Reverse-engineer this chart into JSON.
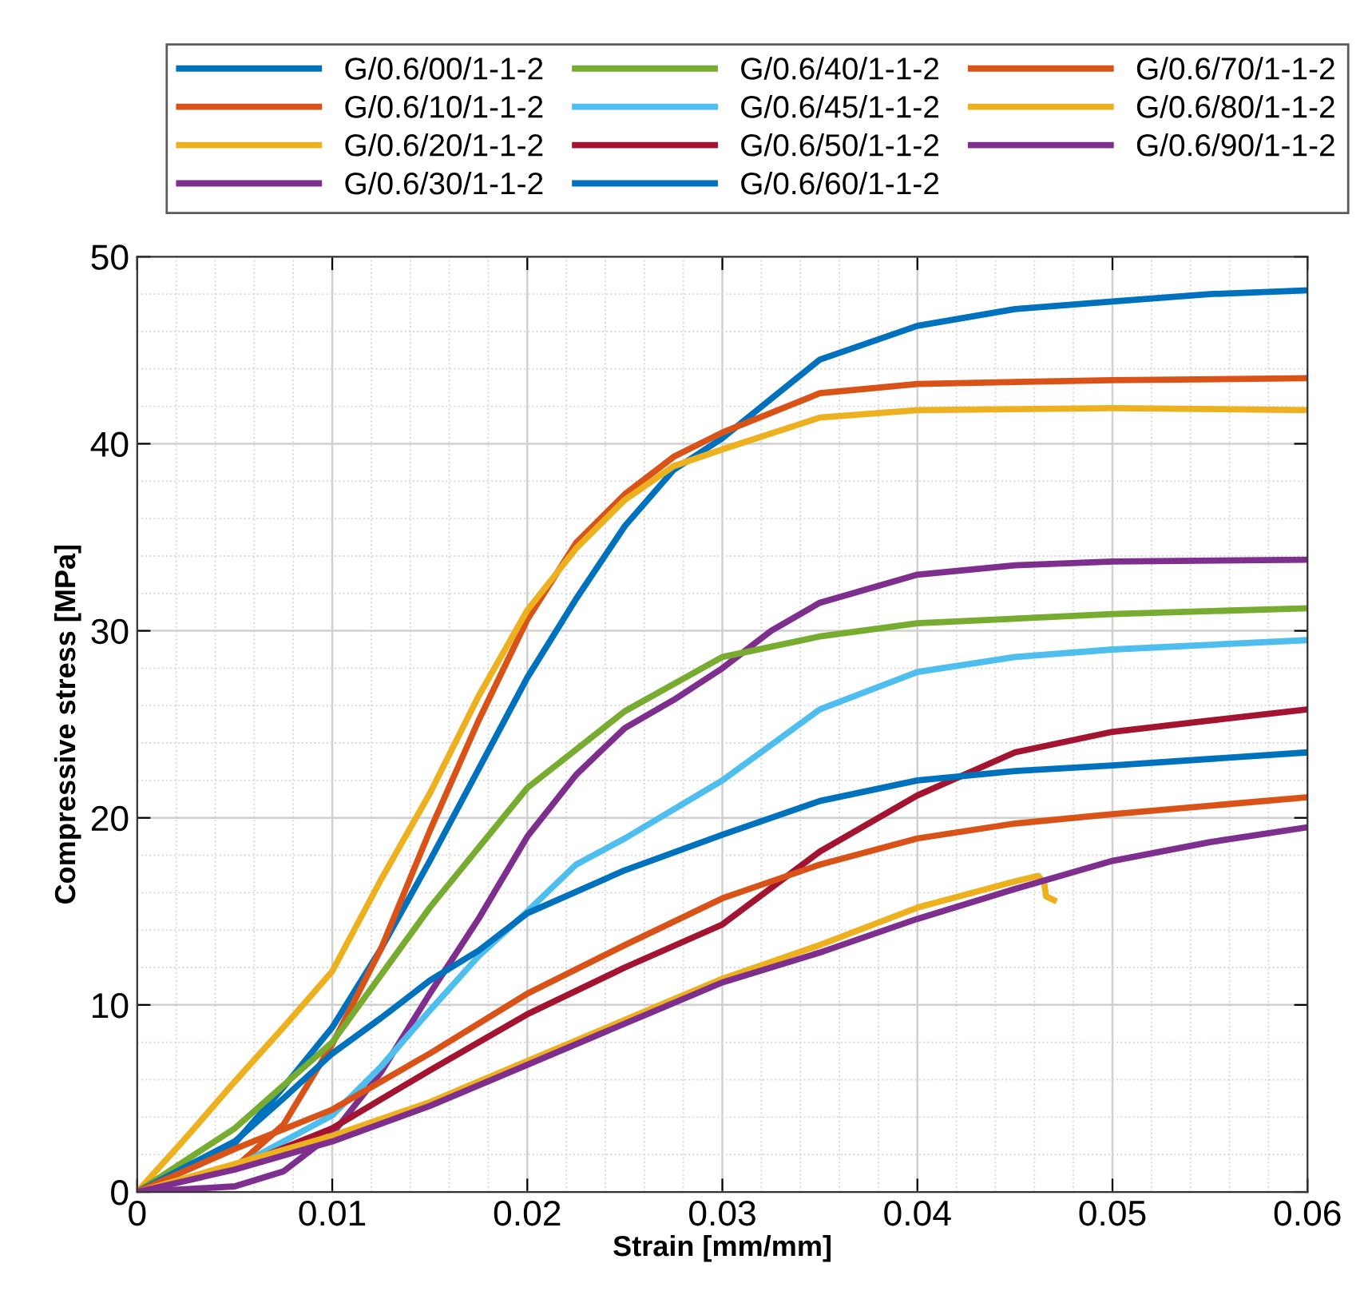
{
  "chart_data": {
    "type": "line",
    "xlabel": "Strain [mm/mm]",
    "ylabel": "Compressive stress [MPa]",
    "xlim": [
      0,
      0.06
    ],
    "ylim": [
      0,
      50
    ],
    "xticks": [
      0,
      0.01,
      0.02,
      0.03,
      0.04,
      0.05,
      0.06
    ],
    "yticks": [
      0,
      10,
      20,
      30,
      40,
      50
    ],
    "grid": true,
    "legend": "top",
    "marker": "none",
    "line_style": "solid",
    "series": [
      {
        "name": "G/0.6/00/1-1-2",
        "color": "#0072bd",
        "x": [
          0,
          0.005,
          0.0075,
          0.01,
          0.0125,
          0.015,
          0.0175,
          0.02,
          0.0225,
          0.025,
          0.0275,
          0.03,
          0.035,
          0.04,
          0.045,
          0.05,
          0.055,
          0.06
        ],
        "values": [
          0,
          2.6,
          5.6,
          8.8,
          13,
          17.7,
          22.6,
          27.5,
          31.7,
          35.6,
          38.6,
          40.3,
          44.5,
          46.3,
          47.2,
          47.6,
          48,
          48.2
        ]
      },
      {
        "name": "G/0.6/10/1-1-2",
        "color": "#d95319",
        "x": [
          0,
          0.005,
          0.0075,
          0.01,
          0.0125,
          0.015,
          0.0175,
          0.02,
          0.0225,
          0.025,
          0.0275,
          0.03,
          0.035,
          0.04,
          0.05,
          0.06
        ],
        "values": [
          0,
          1.3,
          3.6,
          7.9,
          13,
          19.3,
          25.2,
          30.6,
          34.7,
          37.3,
          39.3,
          40.6,
          42.7,
          43.2,
          43.4,
          43.5
        ]
      },
      {
        "name": "G/0.6/20/1-1-2",
        "color": "#edb120",
        "x": [
          0,
          0.0025,
          0.005,
          0.0075,
          0.01,
          0.0125,
          0.015,
          0.0175,
          0.02,
          0.0225,
          0.025,
          0.0275,
          0.03,
          0.035,
          0.04,
          0.05,
          0.06
        ],
        "values": [
          0,
          2.9,
          5.9,
          8.8,
          11.8,
          16.7,
          21.3,
          26.5,
          31.1,
          34.4,
          37,
          38.8,
          39.7,
          41.4,
          41.8,
          41.9,
          41.8
        ]
      },
      {
        "name": "G/0.6/30/1-1-2",
        "color": "#7e2f8e",
        "x": [
          0,
          0.005,
          0.0075,
          0.01,
          0.0125,
          0.015,
          0.0175,
          0.02,
          0.0225,
          0.025,
          0.0275,
          0.03,
          0.0325,
          0.035,
          0.04,
          0.045,
          0.05,
          0.06
        ],
        "values": [
          0,
          0.3,
          1.1,
          3.1,
          6.4,
          10.6,
          14.6,
          19,
          22.3,
          24.8,
          26.3,
          28,
          30,
          31.5,
          33,
          33.5,
          33.7,
          33.8
        ]
      },
      {
        "name": "G/0.6/40/1-1-2",
        "color": "#77ac30",
        "x": [
          0,
          0.005,
          0.01,
          0.015,
          0.02,
          0.025,
          0.03,
          0.035,
          0.04,
          0.05,
          0.06
        ],
        "values": [
          0,
          3.4,
          8,
          15.2,
          21.6,
          25.7,
          28.6,
          29.7,
          30.4,
          30.9,
          31.2
        ]
      },
      {
        "name": "G/0.6/45/1-1-2",
        "color": "#4dbeee",
        "x": [
          0,
          0.005,
          0.01,
          0.0125,
          0.015,
          0.0175,
          0.02,
          0.0225,
          0.025,
          0.03,
          0.035,
          0.04,
          0.045,
          0.05,
          0.06
        ],
        "values": [
          0,
          1.3,
          4.1,
          6.7,
          9.7,
          12.6,
          15,
          17.5,
          18.9,
          22,
          25.8,
          27.8,
          28.6,
          29,
          29.5
        ]
      },
      {
        "name": "G/0.6/50/1-1-2",
        "color": "#a2142f",
        "x": [
          0,
          0.005,
          0.01,
          0.015,
          0.02,
          0.025,
          0.03,
          0.035,
          0.04,
          0.045,
          0.05,
          0.055,
          0.06
        ],
        "values": [
          0,
          1.3,
          3.4,
          6.5,
          9.5,
          12,
          14.3,
          18.2,
          21.2,
          23.5,
          24.6,
          25.2,
          25.8
        ]
      },
      {
        "name": "G/0.6/60/1-1-2",
        "color": "#0072bd",
        "x": [
          0,
          0.005,
          0.0075,
          0.01,
          0.0125,
          0.015,
          0.0175,
          0.02,
          0.025,
          0.03,
          0.035,
          0.04,
          0.045,
          0.05,
          0.06
        ],
        "values": [
          0,
          2.7,
          5,
          7.4,
          9.3,
          11.3,
          12.9,
          14.9,
          17.2,
          19.1,
          20.9,
          22,
          22.5,
          22.8,
          23.5
        ]
      },
      {
        "name": "G/0.6/70/1-1-2",
        "color": "#d95319",
        "x": [
          0,
          0.005,
          0.01,
          0.015,
          0.02,
          0.025,
          0.03,
          0.035,
          0.04,
          0.045,
          0.05,
          0.06
        ],
        "values": [
          0,
          2.3,
          4.4,
          7.4,
          10.6,
          13.2,
          15.7,
          17.5,
          18.9,
          19.7,
          20.2,
          21.1
        ]
      },
      {
        "name": "G/0.6/80/1-1-2",
        "color": "#edb120",
        "x": [
          0,
          0.005,
          0.01,
          0.015,
          0.02,
          0.025,
          0.03,
          0.035,
          0.04,
          0.045,
          0.0462,
          0.0465,
          0.0466,
          0.047
        ],
        "values": [
          0,
          1.5,
          3,
          4.8,
          7,
          9.2,
          11.4,
          13.2,
          15.2,
          16.6,
          16.9,
          16.5,
          15.8,
          15.6
        ]
      },
      {
        "name": "G/0.6/90/1-1-2",
        "color": "#7e2f8e",
        "x": [
          0,
          0.005,
          0.01,
          0.015,
          0.02,
          0.025,
          0.03,
          0.035,
          0.04,
          0.045,
          0.05,
          0.055,
          0.06
        ],
        "values": [
          0,
          1.2,
          2.7,
          4.6,
          6.8,
          9,
          11.2,
          12.8,
          14.6,
          16.2,
          17.7,
          18.7,
          19.5
        ]
      }
    ]
  }
}
